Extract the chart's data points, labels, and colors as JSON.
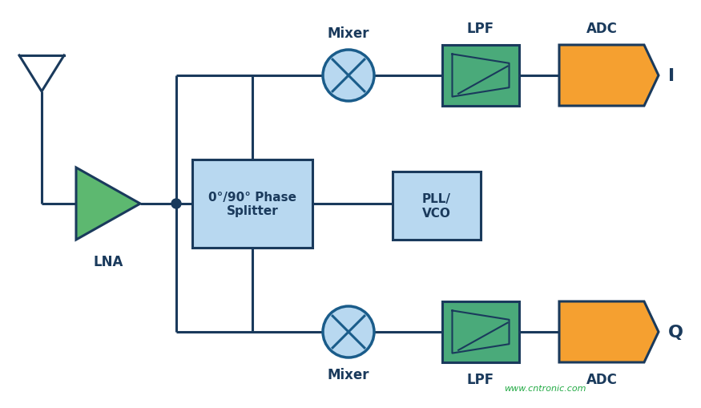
{
  "bg_color": "#ffffff",
  "line_color": "#1a3a5c",
  "line_width": 2.2,
  "lna_fill": "#5db870",
  "lna_edge": "#1a3a5c",
  "splitter_fill": "#b8d8f0",
  "splitter_edge": "#1a3a5c",
  "splitter_label": "0°/90° Phase\nSplitter",
  "mixer_fill": "#b8d8f0",
  "mixer_edge": "#1a5c8a",
  "lpf_fill": "#4aaa7a",
  "lpf_edge": "#1a3a5c",
  "lpf_label": "LPF",
  "adc_fill": "#f5a030",
  "adc_edge": "#1a3a5c",
  "adc_label": "ADC",
  "pll_fill": "#b8d8f0",
  "pll_edge": "#1a3a5c",
  "pll_label": "PLL/\nVCO",
  "label_color": "#1a3a5c",
  "label_fontsize": 12,
  "watermark": "www.cntronic.com",
  "watermark_color": "#22aa44",
  "I_label": "I",
  "Q_label": "Q",
  "mixer_label": "Mixer",
  "lna_label": "LNA"
}
